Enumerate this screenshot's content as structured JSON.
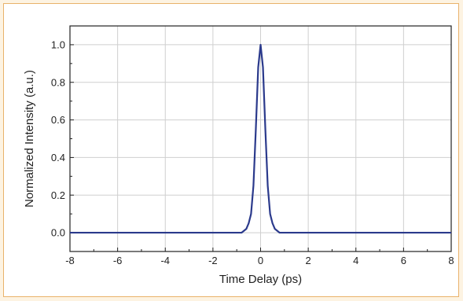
{
  "chart_data": {
    "type": "line",
    "title": "",
    "xlabel": "Time Delay (ps)",
    "ylabel": "Normalized Intensity (a.u.)",
    "xlim": [
      -8,
      8
    ],
    "ylim": [
      -0.1,
      1.1
    ],
    "xticks": [
      -8,
      -6,
      -4,
      -2,
      0,
      2,
      4,
      6,
      8
    ],
    "yticks": [
      0.0,
      0.2,
      0.4,
      0.6,
      0.8,
      1.0
    ],
    "xtick_labels": [
      "-8",
      "-6",
      "-4",
      "-2",
      "0",
      "2",
      "4",
      "6",
      "8"
    ],
    "ytick_labels": [
      "0.0",
      "0.2",
      "0.4",
      "0.6",
      "0.8",
      "1.0"
    ],
    "grid": true,
    "line_color": "#2b3a8c",
    "series": [
      {
        "x": [
          -8,
          -4,
          -1.5,
          -0.8,
          -0.6,
          -0.5,
          -0.4,
          -0.3,
          -0.2,
          -0.1,
          0,
          0.1,
          0.2,
          0.3,
          0.4,
          0.5,
          0.6,
          0.8,
          1.5,
          4,
          8
        ],
        "y": [
          0.0,
          0.0,
          0.0,
          0.0,
          0.02,
          0.05,
          0.1,
          0.25,
          0.55,
          0.88,
          1.0,
          0.88,
          0.55,
          0.25,
          0.1,
          0.05,
          0.02,
          0.0,
          0.0,
          0.0,
          0.0
        ]
      }
    ]
  }
}
